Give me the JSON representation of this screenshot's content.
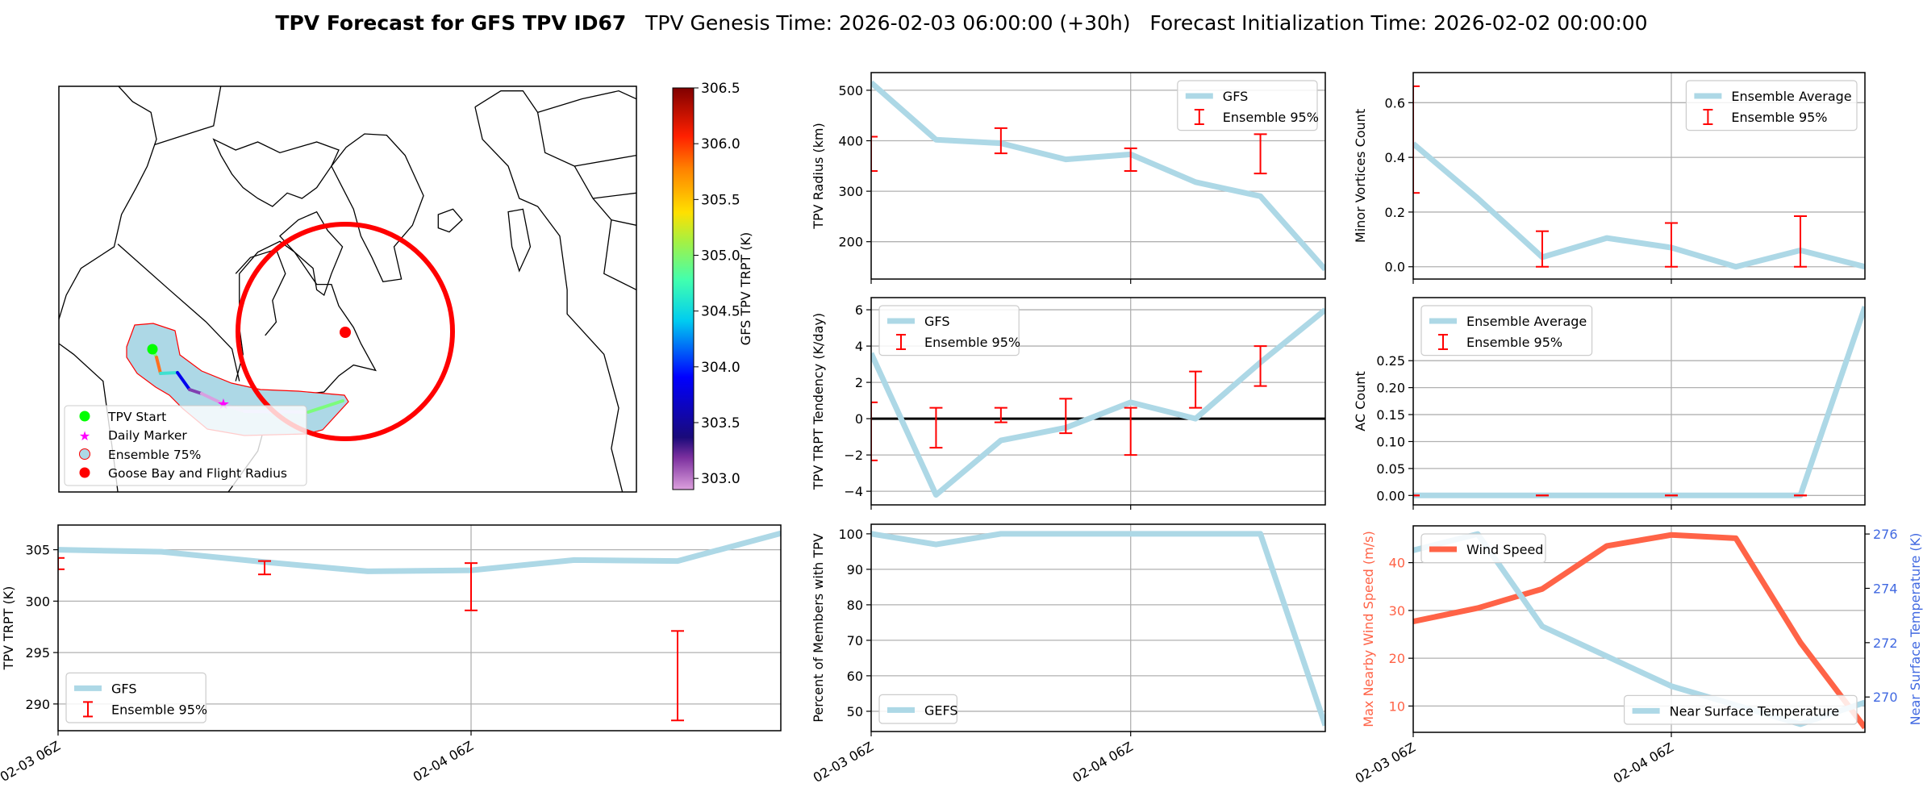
{
  "title": {
    "main": "TPV Forecast for GFS TPV ID67",
    "genesis": "TPV Genesis Time: 2026-02-03 06:00:00 (+30h)",
    "init": "Forecast Initialization Time: 2026-02-02 00:00:00"
  },
  "map": {
    "legend": [
      "TPV Start",
      "Daily Marker",
      "Ensemble 75%",
      "Goose Bay and Flight Radius"
    ],
    "colors": {
      "start": "#00ff00",
      "daily": "#ff00ff",
      "ensemble_fill": "#add8e6",
      "ensemble_edge": "#ff0000",
      "goose_bay": "#ff0000"
    },
    "colorbar": {
      "label": "GFS TPV TRPT (K)",
      "range": [
        302.9,
        306.5
      ],
      "ticks": [
        303.0,
        303.5,
        304.0,
        304.5,
        305.0,
        305.5,
        306.0,
        306.5
      ],
      "tick_labels": [
        "303.0",
        "303.5",
        "304.0",
        "304.5",
        "305.0",
        "305.5",
        "306.0",
        "306.5"
      ]
    }
  },
  "chart_data": [
    {
      "id": "trpt",
      "type": "line",
      "ylabel": "TPV TRPT (K)",
      "x_hours": [
        0,
        6,
        12,
        18,
        24,
        30,
        36,
        42
      ],
      "xlim": [
        0,
        42
      ],
      "xticks": [
        0,
        24
      ],
      "xtick_labels": [
        "02-03 06Z",
        "02-04 06Z"
      ],
      "ylim": [
        287.4,
        307.4
      ],
      "yticks": [
        290,
        295,
        300,
        305
      ],
      "ytick_labels": [
        "290",
        "295",
        "300",
        "305"
      ],
      "series": [
        {
          "name": "GFS",
          "color": "#add8e6",
          "values": [
            305.0,
            304.8,
            303.8,
            302.9,
            303.0,
            304.0,
            303.9,
            306.6
          ]
        }
      ],
      "errorbars": {
        "name": "Ensemble 95%",
        "color": "#ff0000",
        "x_hours": [
          0,
          12,
          24,
          36
        ],
        "low": [
          303.1,
          302.6,
          299.1,
          288.4
        ],
        "high": [
          304.2,
          303.9,
          303.7,
          297.1
        ]
      },
      "legend": "lower left"
    },
    {
      "id": "radius",
      "type": "line",
      "ylabel": "TPV Radius (km)",
      "x_hours": [
        0,
        6,
        12,
        18,
        24,
        30,
        36,
        42
      ],
      "xlim": [
        0,
        42
      ],
      "xticks": [
        0,
        24
      ],
      "xtick_labels": [
        "",
        ""
      ],
      "ylim": [
        126,
        535
      ],
      "yticks": [
        200,
        300,
        400,
        500
      ],
      "ytick_labels": [
        "200",
        "300",
        "400",
        "500"
      ],
      "series": [
        {
          "name": "GFS",
          "color": "#add8e6",
          "values": [
            515,
            402,
            395,
            363,
            373,
            318,
            290,
            145
          ]
        }
      ],
      "errorbars": {
        "name": "Ensemble 95%",
        "color": "#ff0000",
        "x_hours": [
          0,
          12,
          24,
          36
        ],
        "low": [
          340,
          375,
          340,
          335
        ],
        "high": [
          408,
          425,
          385,
          413
        ]
      },
      "legend": "upper right"
    },
    {
      "id": "tendency",
      "type": "line",
      "ylabel": "TPV TRPT Tendency (K/day)",
      "x_hours": [
        0,
        6,
        12,
        18,
        24,
        30,
        36,
        42
      ],
      "xlim": [
        0,
        42
      ],
      "xticks": [
        0,
        24
      ],
      "xtick_labels": [
        "",
        ""
      ],
      "ylim": [
        -4.75,
        6.67
      ],
      "yticks": [
        -4,
        -2,
        0,
        2,
        4,
        6
      ],
      "ytick_labels": [
        "−4",
        "−2",
        "0",
        "2",
        "4",
        "6"
      ],
      "hline": 0,
      "series": [
        {
          "name": "GFS",
          "color": "#add8e6",
          "values": [
            3.6,
            -4.2,
            -1.2,
            -0.5,
            0.9,
            0.0,
            3.1,
            6.0
          ]
        }
      ],
      "errorbars": {
        "name": "Ensemble 95%",
        "color": "#ff0000",
        "x_hours": [
          0,
          6,
          12,
          18,
          24,
          30,
          36
        ],
        "low": [
          -2.3,
          -1.6,
          -0.2,
          -0.8,
          -2.0,
          0.6,
          1.8
        ],
        "high": [
          0.9,
          0.6,
          0.6,
          1.1,
          0.6,
          2.6,
          4.0
        ]
      },
      "legend": "upper left"
    },
    {
      "id": "percent",
      "type": "line",
      "ylabel": "Percent of Members with TPV",
      "x_hours": [
        0,
        6,
        12,
        18,
        24,
        30,
        36,
        42
      ],
      "xlim": [
        0,
        42
      ],
      "xticks": [
        0,
        24
      ],
      "xtick_labels": [
        "02-03 06Z",
        "02-04 06Z"
      ],
      "ylim": [
        44.3,
        102.7
      ],
      "yticks": [
        50,
        60,
        70,
        80,
        90,
        100
      ],
      "ytick_labels": [
        "50",
        "60",
        "70",
        "80",
        "90",
        "100"
      ],
      "series": [
        {
          "name": "GEFS",
          "color": "#add8e6",
          "values": [
            100,
            97,
            100,
            100,
            100,
            100,
            100,
            46
          ]
        }
      ],
      "legend": "lower left"
    },
    {
      "id": "minor",
      "type": "line",
      "ylabel": "Minor Vortices Count",
      "x_hours": [
        0,
        6,
        12,
        18,
        24,
        30,
        36,
        42
      ],
      "xlim": [
        0,
        42
      ],
      "xticks": [
        0,
        24
      ],
      "xtick_labels": [
        "",
        ""
      ],
      "ylim": [
        -0.045,
        0.71
      ],
      "yticks": [
        0.0,
        0.2,
        0.4,
        0.6
      ],
      "ytick_labels": [
        "0.0",
        "0.2",
        "0.4",
        "0.6"
      ],
      "series": [
        {
          "name": "Ensemble Average",
          "color": "#add8e6",
          "values": [
            0.45,
            0.25,
            0.035,
            0.105,
            0.07,
            0.0,
            0.06,
            0.0
          ]
        }
      ],
      "errorbars": {
        "name": "Ensemble 95%",
        "color": "#ff0000",
        "x_hours": [
          0,
          12,
          24,
          36
        ],
        "low": [
          0.27,
          0.0,
          0.0,
          0.0
        ],
        "high": [
          0.66,
          0.13,
          0.16,
          0.185
        ]
      },
      "legend": "upper right"
    },
    {
      "id": "ac",
      "type": "line",
      "ylabel": "AC Count",
      "x_hours": [
        0,
        6,
        12,
        18,
        24,
        30,
        36,
        42
      ],
      "xlim": [
        0,
        42
      ],
      "xticks": [
        0,
        24
      ],
      "xtick_labels": [
        "",
        ""
      ],
      "ylim": [
        -0.0175,
        0.367
      ],
      "yticks": [
        0.0,
        0.05,
        0.1,
        0.15,
        0.2,
        0.25
      ],
      "ytick_labels": [
        "0.00",
        "0.05",
        "0.10",
        "0.15",
        "0.20",
        "0.25"
      ],
      "series": [
        {
          "name": "Ensemble Average",
          "color": "#add8e6",
          "values": [
            0,
            0,
            0,
            0,
            0,
            0,
            0,
            0.35
          ]
        }
      ],
      "errorbars": {
        "name": "Ensemble 95%",
        "color": "#ff0000",
        "x_hours": [
          0,
          12,
          24,
          36
        ],
        "low": [
          0,
          0,
          0,
          0
        ],
        "high": [
          0,
          0,
          0,
          0
        ]
      },
      "legend": "upper left"
    },
    {
      "id": "wind",
      "type": "line",
      "ylabel": "Max Nearby Wind Speed (m/s)",
      "ylabel_color": "#ff6347",
      "ylabel2": "Near Surface Temperature (K)",
      "ylabel2_color": "#4169e1",
      "x_hours": [
        0,
        6,
        12,
        18,
        24,
        30,
        36,
        42
      ],
      "xlim": [
        0,
        42
      ],
      "xticks": [
        0,
        24
      ],
      "xtick_labels": [
        "02-03 06Z",
        "02-04 06Z"
      ],
      "ylim": [
        4.5,
        47.7
      ],
      "yticks": [
        10,
        20,
        30,
        40
      ],
      "ytick_labels": [
        "10",
        "20",
        "30",
        "40"
      ],
      "ylim2": [
        268.7,
        276.3
      ],
      "yticks2": [
        270,
        272,
        274,
        276
      ],
      "ytick2_labels": [
        "270",
        "272",
        "274",
        "276"
      ],
      "series": [
        {
          "name": "Wind Speed",
          "color": "#ff6347",
          "axis": "left",
          "legend": "upper left",
          "values": [
            27.7,
            30.5,
            34.5,
            43.5,
            45.8,
            45.1,
            23.3,
            5.5
          ]
        },
        {
          "name": "Near Surface Temperature",
          "color": "#add8e6",
          "axis": "right",
          "legend": "lower right",
          "values": [
            275.4,
            276.0,
            272.6,
            271.5,
            270.4,
            269.7,
            269.0,
            269.8
          ]
        }
      ]
    }
  ]
}
